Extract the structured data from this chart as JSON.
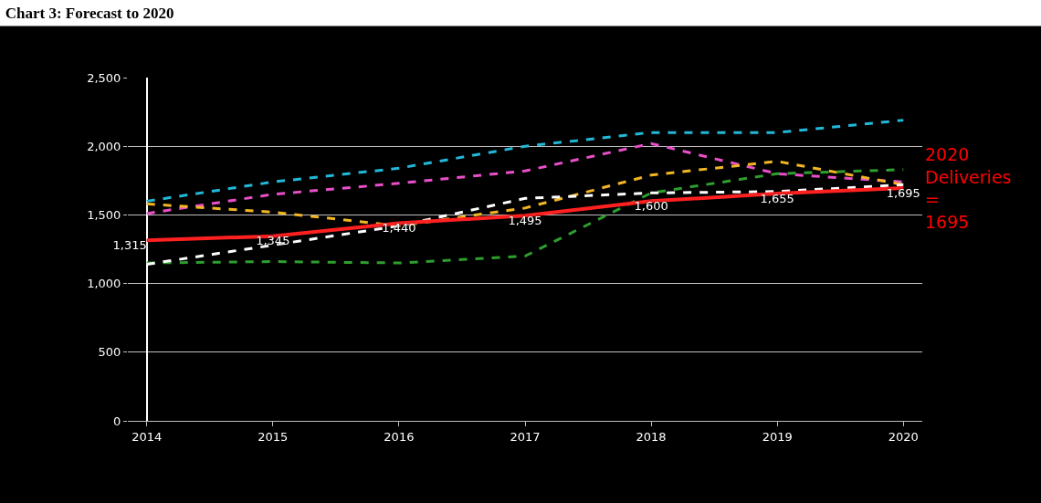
{
  "chart_data": {
    "type": "line",
    "title": "Chart 3: Forecast to 2020",
    "categories": [
      "2014",
      "2015",
      "2016",
      "2017",
      "2018",
      "2019",
      "2020"
    ],
    "series": [
      {
        "color": "#22b8d8",
        "line_style": "dashed",
        "values": [
          1600,
          1740,
          1840,
          2000,
          2100,
          2100,
          2190
        ]
      },
      {
        "color": "#e84fc8",
        "line_style": "dashed",
        "values": [
          1510,
          1650,
          1730,
          1820,
          2020,
          1800,
          1740
        ]
      },
      {
        "color": "#f2b623",
        "line_style": "dashed",
        "values": [
          1580,
          1520,
          1420,
          1550,
          1790,
          1890,
          1720
        ]
      },
      {
        "color": "#2f9e2f",
        "line_style": "dashed",
        "values": [
          1150,
          1160,
          1150,
          1200,
          1660,
          1800,
          1830
        ]
      },
      {
        "color": "#ffffff",
        "line_style": "dashed",
        "values": [
          1140,
          1280,
          1420,
          1620,
          1660,
          1670,
          1720
        ]
      },
      {
        "color": "#ff2020",
        "line_style": "solid",
        "values": [
          1315,
          1345,
          1440,
          1495,
          1600,
          1655,
          1695
        ],
        "value_labels": [
          "1,315",
          "1,345",
          "1,440",
          "1,495",
          "1,600",
          "1,655",
          "1,695"
        ]
      }
    ],
    "ylim": [
      0,
      2500
    ],
    "yticks": [
      {
        "value": 0,
        "label": "0"
      },
      {
        "value": 500,
        "label": "500"
      },
      {
        "value": 1000,
        "label": "1,000"
      },
      {
        "value": 1500,
        "label": "1,500"
      },
      {
        "value": 2000,
        "label": "2,000"
      },
      {
        "value": 2500,
        "label": "2,500"
      }
    ],
    "grid": "y",
    "marker": "none",
    "annotations": [
      {
        "text": "2020 Deliveries = 1695",
        "x": "2020",
        "y": 1695
      }
    ]
  }
}
